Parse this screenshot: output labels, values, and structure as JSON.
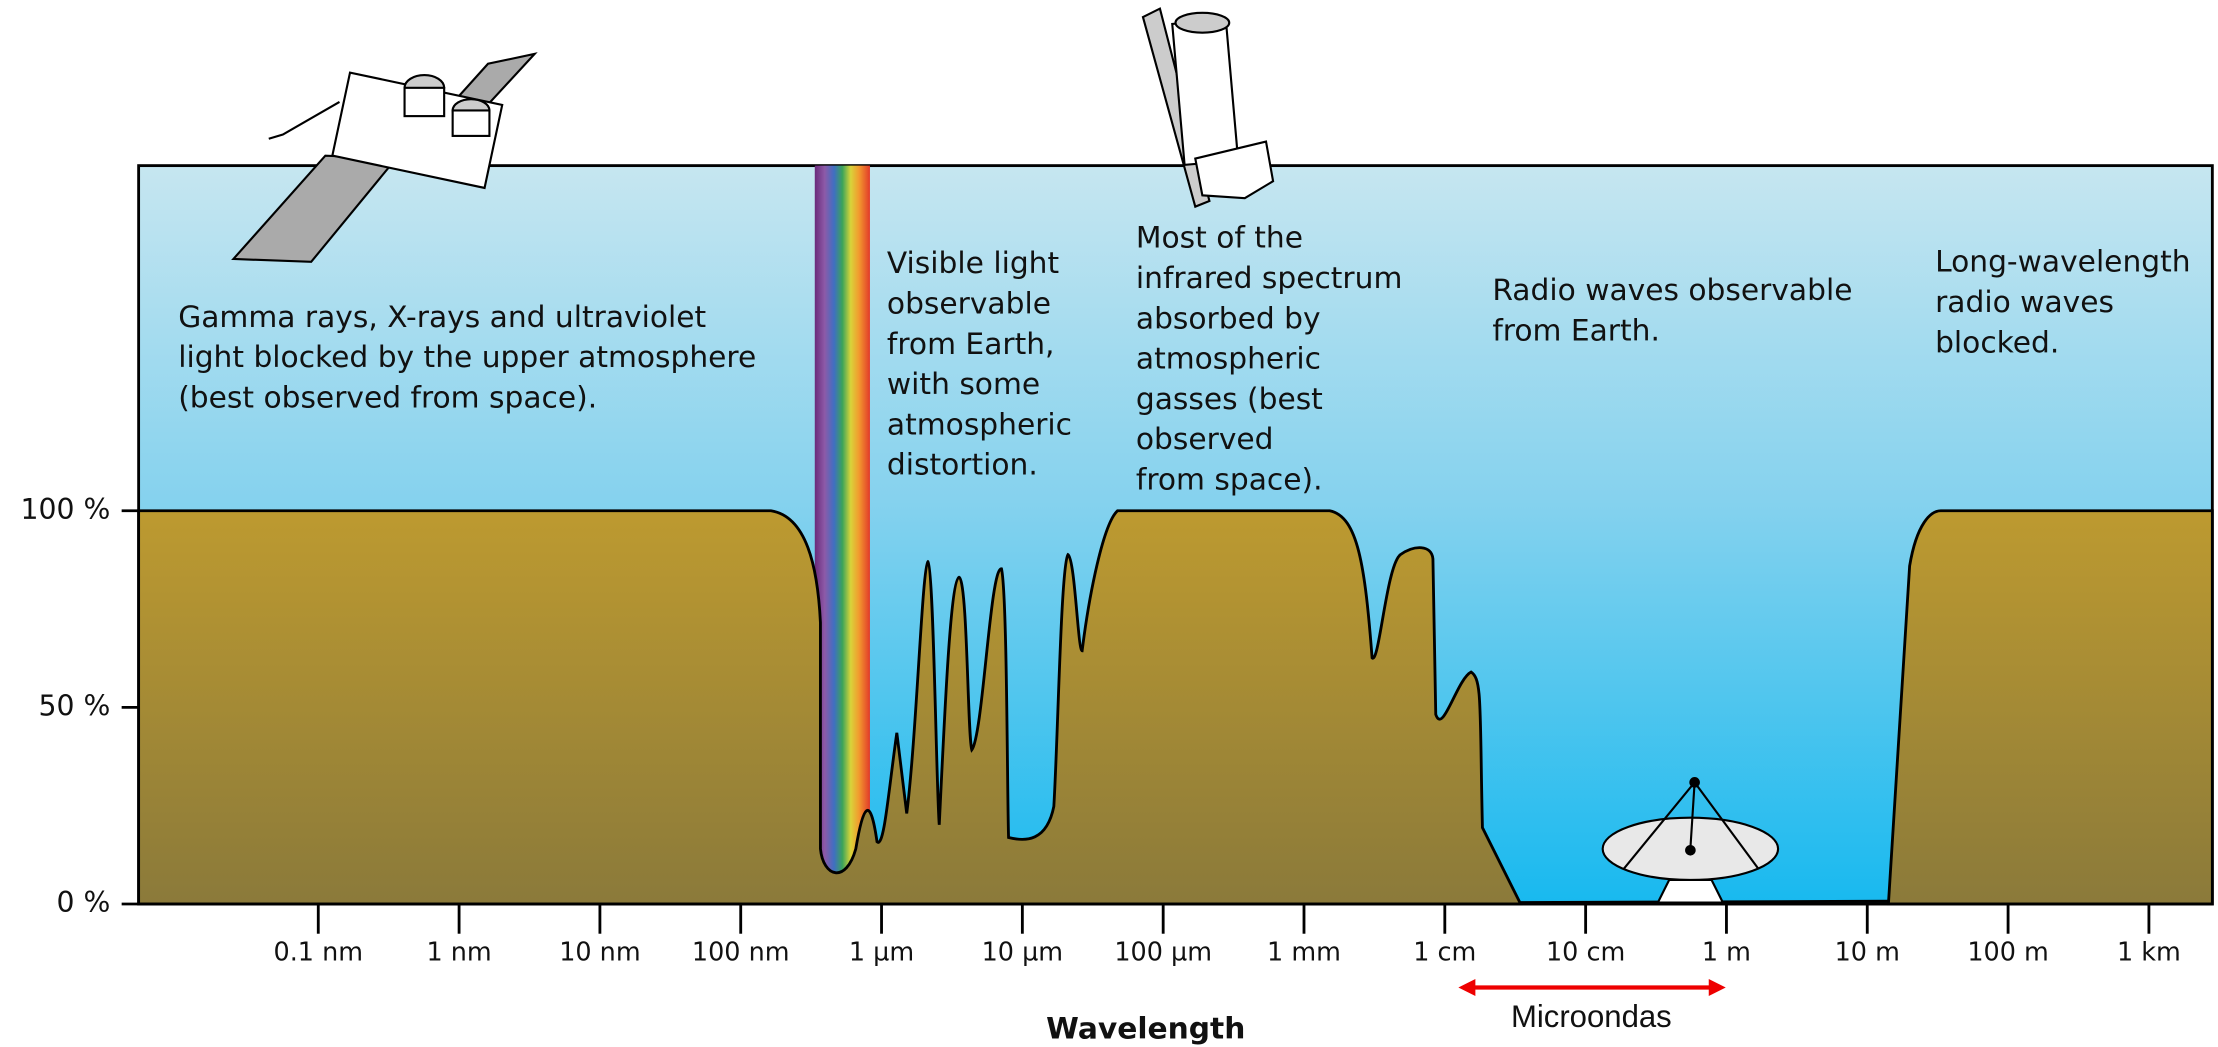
{
  "axis": {
    "y_ticks": [
      "100 %",
      "50 %",
      "0 %"
    ],
    "x_ticks": [
      "0.1 nm",
      "1 nm",
      "10 nm",
      "100 nm",
      "1 µm",
      "10 µm",
      "100 µm",
      "1 mm",
      "1 cm",
      "10 cm",
      "1 m",
      "10 m",
      "100 m",
      "1 km"
    ],
    "x_title": "Wavelength"
  },
  "annotations": [
    {
      "lines": [
        "Gamma rays, X-rays and ultraviolet",
        "light blocked by the upper atmosphere",
        "(best observed from space)."
      ]
    },
    {
      "lines": [
        "Visible light",
        "observable",
        "from Earth,",
        "with some",
        "atmospheric",
        "distortion."
      ]
    },
    {
      "lines": [
        "Most of the",
        "infrared spectrum",
        "absorbed by",
        "atmospheric",
        "gasses (best",
        "observed",
        "from space)."
      ]
    },
    {
      "lines": [
        "Radio waves observable",
        "from Earth."
      ]
    },
    {
      "lines": [
        "Long-wavelength",
        "radio waves",
        "blocked."
      ]
    }
  ],
  "band_label": "Microondas"
}
